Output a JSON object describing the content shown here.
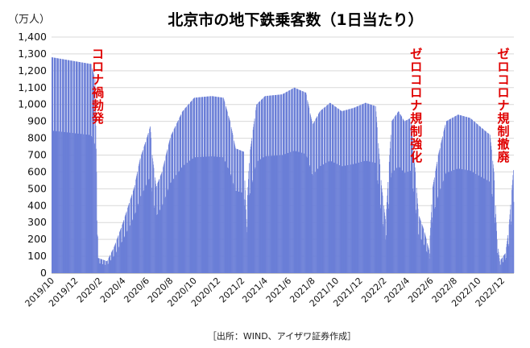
{
  "chart_data": {
    "type": "bar",
    "title": "北京市の地下鉄乗客数（1日当たり）",
    "unit_label": "（万人）",
    "source": "［出所：WIND、アイザワ証券作成］",
    "ylim": [
      0,
      1400
    ],
    "yticks": [
      0,
      100,
      200,
      300,
      400,
      500,
      600,
      700,
      800,
      900,
      1000,
      1100,
      1200,
      1300,
      1400
    ],
    "ytick_labels": [
      "0",
      "100",
      "200",
      "300",
      "400",
      "500",
      "600",
      "700",
      "800",
      "900",
      "1,000",
      "1,100",
      "1,200",
      "1,300",
      "1,400"
    ],
    "x_start": "2019-10-01",
    "x_end": "2022-12-31",
    "xtick_labels": [
      "2019/10",
      "2019/12",
      "2020/2",
      "2020/4",
      "2020/6",
      "2020/8",
      "2020/10",
      "2020/12",
      "2021/2",
      "2021/4",
      "2021/6",
      "2021/8",
      "2021/10",
      "2021/12",
      "2022/2",
      "2022/4",
      "2022/6",
      "2022/8",
      "2022/10",
      "2022/12"
    ],
    "series": [
      {
        "color": "#6b7fd7",
        "weekday_points": [
          [
            "2019-10-01",
            1280
          ],
          [
            "2020-01-10",
            1240
          ],
          [
            "2020-01-20",
            1150
          ],
          [
            "2020-01-24",
            600
          ],
          [
            "2020-01-28",
            90
          ],
          [
            "2020-02-20",
            70
          ],
          [
            "2020-03-10",
            160
          ],
          [
            "2020-04-01",
            300
          ],
          [
            "2020-04-30",
            510
          ],
          [
            "2020-05-15",
            680
          ],
          [
            "2020-06-01",
            800
          ],
          [
            "2020-06-10",
            870
          ],
          [
            "2020-06-15",
            700
          ],
          [
            "2020-06-25",
            510
          ],
          [
            "2020-07-10",
            600
          ],
          [
            "2020-08-01",
            810
          ],
          [
            "2020-09-01",
            960
          ],
          [
            "2020-10-01",
            1040
          ],
          [
            "2020-11-15",
            1050
          ],
          [
            "2020-12-15",
            1040
          ],
          [
            "2021-01-01",
            900
          ],
          [
            "2021-01-15",
            740
          ],
          [
            "2021-02-05",
            720
          ],
          [
            "2021-02-12",
            320
          ],
          [
            "2021-02-20",
            700
          ],
          [
            "2021-03-10",
            1000
          ],
          [
            "2021-04-01",
            1050
          ],
          [
            "2021-05-15",
            1060
          ],
          [
            "2021-06-15",
            1100
          ],
          [
            "2021-07-15",
            1070
          ],
          [
            "2021-08-01",
            880
          ],
          [
            "2021-08-20",
            960
          ],
          [
            "2021-09-15",
            1010
          ],
          [
            "2021-10-15",
            960
          ],
          [
            "2021-11-15",
            980
          ],
          [
            "2021-12-15",
            1010
          ],
          [
            "2022-01-10",
            990
          ],
          [
            "2022-01-25",
            520
          ],
          [
            "2022-02-05",
            300
          ],
          [
            "2022-02-20",
            900
          ],
          [
            "2022-03-10",
            960
          ],
          [
            "2022-03-25",
            900
          ],
          [
            "2022-04-10",
            920
          ],
          [
            "2022-04-22",
            600
          ],
          [
            "2022-04-30",
            350
          ],
          [
            "2022-05-15",
            250
          ],
          [
            "2022-05-28",
            130
          ],
          [
            "2022-06-05",
            500
          ],
          [
            "2022-06-20",
            700
          ],
          [
            "2022-07-10",
            900
          ],
          [
            "2022-08-10",
            940
          ],
          [
            "2022-09-10",
            920
          ],
          [
            "2022-10-10",
            860
          ],
          [
            "2022-10-31",
            820
          ],
          [
            "2022-11-10",
            600
          ],
          [
            "2022-11-18",
            200
          ],
          [
            "2022-11-25",
            70
          ],
          [
            "2022-12-10",
            120
          ],
          [
            "2022-12-18",
            260
          ],
          [
            "2022-12-31",
            640
          ]
        ],
        "weekend_ratio": 0.66
      }
    ],
    "annotations": [
      {
        "text": "コロナ禍勃発",
        "date": "2020-01-28"
      },
      {
        "text": "ゼロコロナ規制強化",
        "date": "2022-04-25"
      },
      {
        "text": "ゼロコロナ規制撤廃",
        "date": "2022-12-05"
      }
    ]
  }
}
